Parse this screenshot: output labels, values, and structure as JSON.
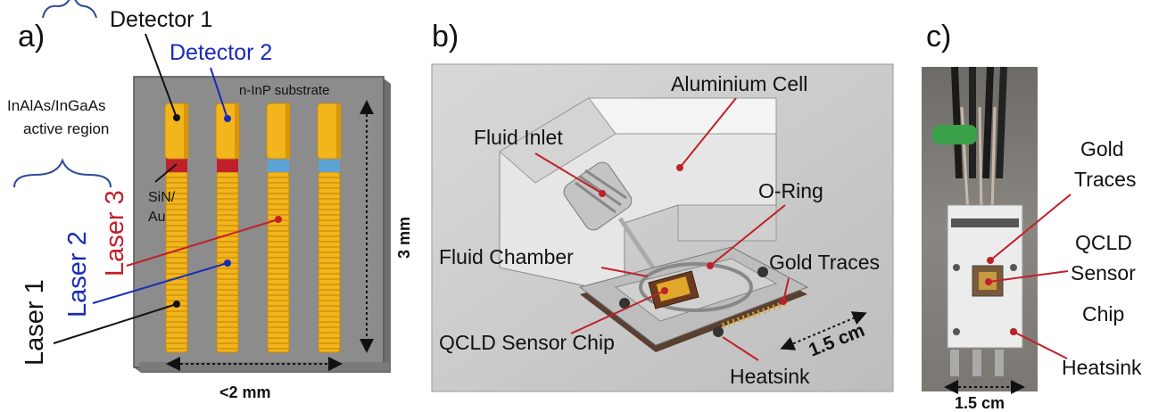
{
  "panel_a": {
    "label": "a)",
    "detector1": "Detector 1",
    "detector2": "Detector 2",
    "substrate": "n-InP substrate",
    "active_region_line1": "InAlAs/InGaAs",
    "active_region_line2": "active region",
    "sin_au_line1": "SiN/",
    "sin_au_line2": "Au",
    "laser1": "Laser 1",
    "laser2": "Laser 2",
    "laser3": "Laser 3",
    "height_dim": "3 mm",
    "width_dim": "<2 mm"
  },
  "panel_b": {
    "label": "b)",
    "aluminium_cell": "Aluminium Cell",
    "fluid_inlet": "Fluid Inlet",
    "o_ring": "O-Ring",
    "fluid_chamber": "Fluid Chamber",
    "gold_traces": "Gold Traces",
    "qcld_chip": "QCLD Sensor Chip",
    "dim": "1.5 cm",
    "heatsink": "Heatsink"
  },
  "panel_c": {
    "label": "c)",
    "gold_traces_line1": "Gold",
    "gold_traces_line2": "Traces",
    "qcld_line1": "QCLD",
    "qcld_line2": "Sensor",
    "qcld_line3": "Chip",
    "heatsink": "Heatsink",
    "dim": "1.5 cm"
  },
  "colors": {
    "gold": "#f2b51c",
    "red": "#c0202a",
    "blue": "#1a2ab8",
    "black": "#111111",
    "substrate": "#8c8c8c"
  }
}
